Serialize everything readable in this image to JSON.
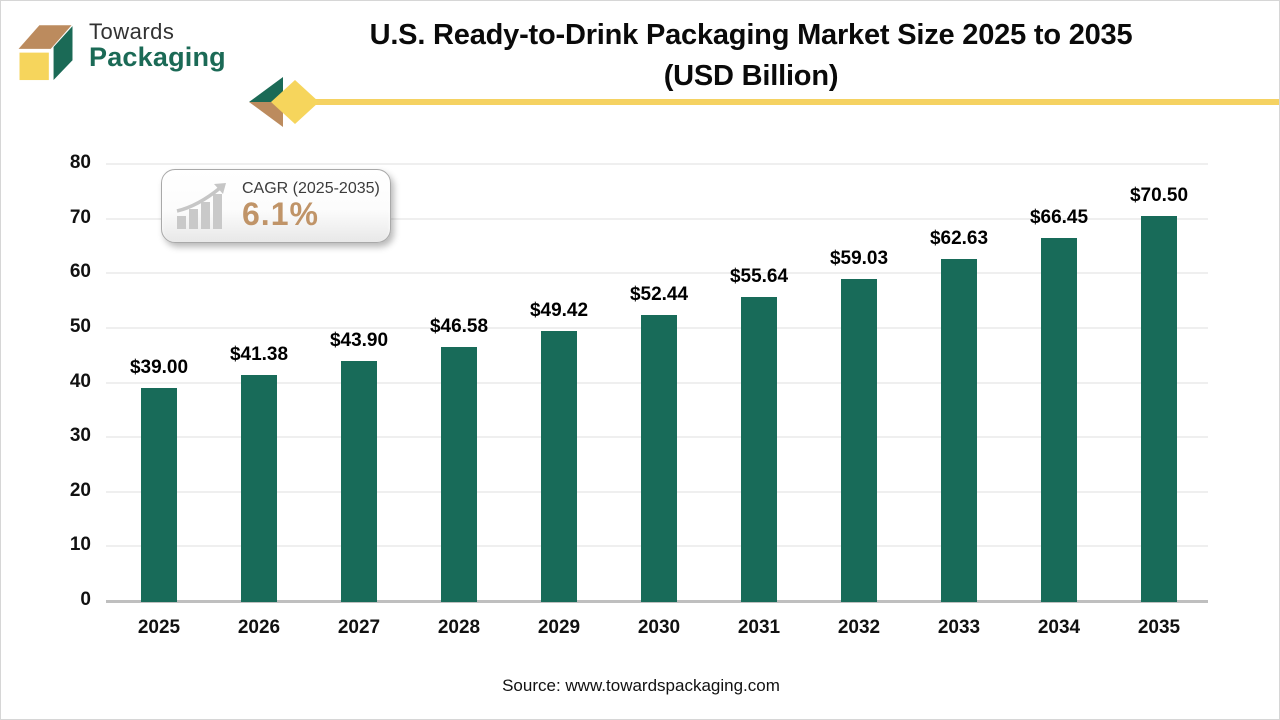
{
  "header": {
    "logo_line1": "Towards",
    "logo_line2": "Packaging",
    "title_line1": "U.S. Ready-to-Drink Packaging Market Size 2025 to 2035",
    "title_line2": "(USD Billion)"
  },
  "cagr_badge": {
    "label": "CAGR (2025-2035)",
    "value": "6.1%"
  },
  "chart_data": {
    "type": "bar",
    "title": "U.S. Ready-to-Drink Packaging Market Size 2025 to 2035 (USD Billion)",
    "categories": [
      "2025",
      "2026",
      "2027",
      "2028",
      "2029",
      "2030",
      "2031",
      "2032",
      "2033",
      "2034",
      "2035"
    ],
    "values": [
      39.0,
      41.38,
      43.9,
      46.58,
      49.42,
      52.44,
      55.64,
      59.03,
      62.63,
      66.45,
      70.5
    ],
    "value_labels": [
      "$39.00",
      "$41.38",
      "$43.90",
      "$46.58",
      "$49.42",
      "$52.44",
      "$55.64",
      "$59.03",
      "$62.63",
      "$66.45",
      "$70.50"
    ],
    "xlabel": "",
    "ylabel": "",
    "ylim": [
      0,
      80
    ],
    "ytick_interval": 10,
    "grid": true,
    "legend_position": "none",
    "bar_color": "#186b59"
  },
  "footer": {
    "source": "Source: www.towardspackaging.com"
  },
  "colors": {
    "bar": "#186b59",
    "accent_yellow": "#f5d262",
    "logo_green": "#1b6a56",
    "logo_tan": "#bc8b5e",
    "cagr_value_color": "#c09468",
    "grid_color": "#efefef",
    "axis_line_color": "#bfbfbf"
  }
}
